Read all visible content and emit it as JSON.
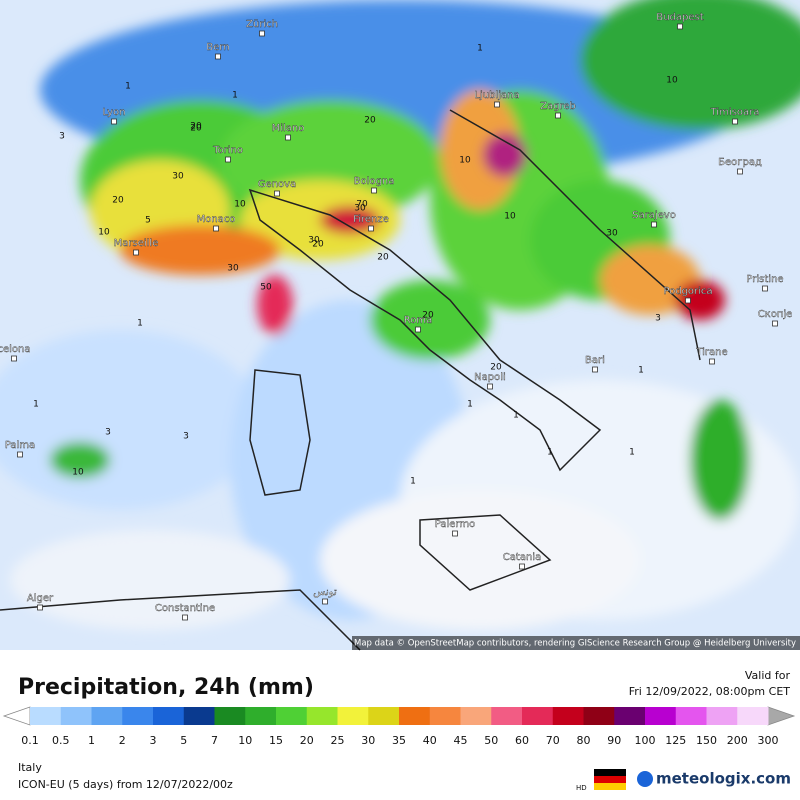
{
  "map": {
    "cities": [
      "Budapest",
      "Zürich",
      "Bern",
      "Ljubljana",
      "Zagreb",
      "Lyon",
      "Milano",
      "Timisoara",
      "Torino",
      "Београд",
      "Genova",
      "Bologna",
      "Monaco",
      "Firenze",
      "Sarajevo",
      "Marseille",
      "Pristine",
      "Podgorica",
      "Скопје",
      "Roma",
      "Tirane",
      "Bari",
      "Napoli",
      "Palma",
      "Palermo",
      "Catania",
      "Alger",
      "Constantine",
      "تونس",
      "celona"
    ],
    "contour_labels": [
      "10",
      "20",
      "30",
      "30",
      "20",
      "10",
      "20",
      "30",
      "50",
      "30",
      "20",
      "70",
      "20",
      "20",
      "10",
      "20",
      "20",
      "30",
      "10",
      "10",
      "5",
      "3",
      "1",
      "1",
      "1",
      "3",
      "1",
      "1",
      "3",
      "10",
      "1",
      "1",
      "1",
      "1",
      "3",
      "1",
      "1"
    ],
    "attribution": "Map data © OpenStreetMap contributors, rendering GIScience Research Group @ Heidelberg University"
  },
  "legend": {
    "title": "Precipitation, 24h (mm)",
    "valid_label": "Valid for",
    "valid_time": "Fri 12/09/2022, 08:00pm CET",
    "labels": [
      "0.1",
      "0.5",
      "1",
      "2",
      "3",
      "5",
      "7",
      "10",
      "15",
      "20",
      "25",
      "30",
      "35",
      "40",
      "45",
      "50",
      "60",
      "70",
      "80",
      "90",
      "100",
      "125",
      "150",
      "200",
      "300"
    ],
    "colors": [
      "#b9dcff",
      "#8fc3fb",
      "#5fa4f2",
      "#3a86ec",
      "#1a64d8",
      "#0a3a8f",
      "#1a8a22",
      "#2fae2c",
      "#4fd035",
      "#96e62c",
      "#f2f23a",
      "#dcd418",
      "#ef6f12",
      "#f6863e",
      "#f9a67a",
      "#f25c84",
      "#e42a58",
      "#c4001c",
      "#8f0016",
      "#6a0070",
      "#b800d0",
      "#e455ee",
      "#eea2f4",
      "#f7d8fa",
      "#d0d0d0"
    ],
    "below_color": "#ffffff",
    "above_color": "#a8a8a8"
  },
  "footer": {
    "region": "Italy",
    "model": "ICON-EU (5 days) from  12/07/2022/00z",
    "hd": "HD",
    "brand": "meteologix.com"
  }
}
